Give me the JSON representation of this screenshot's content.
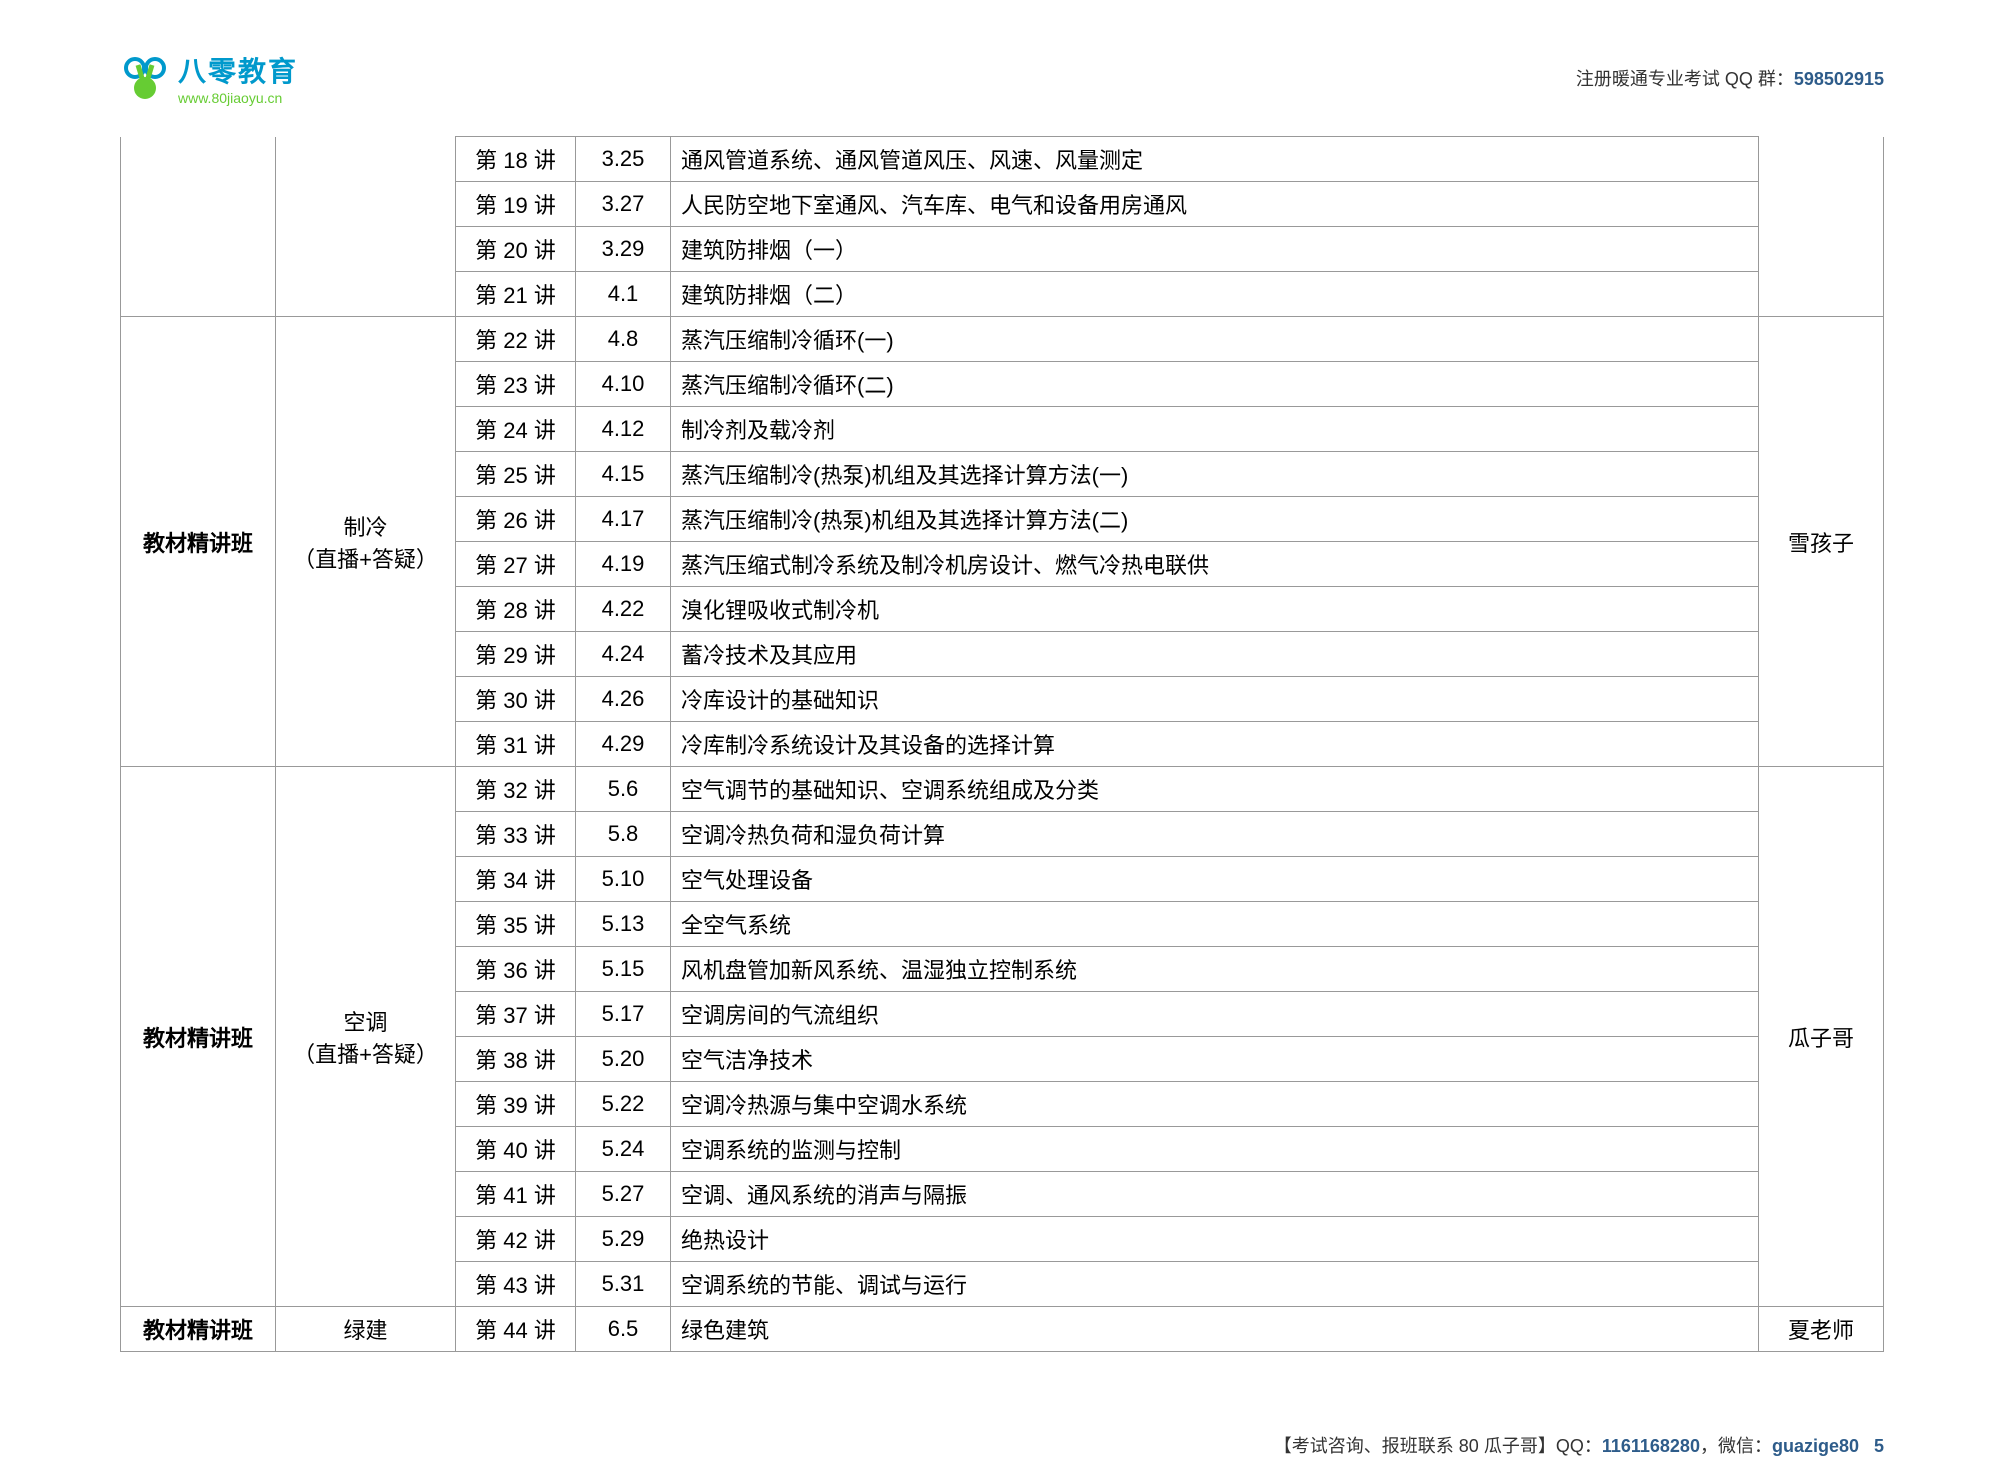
{
  "logo": {
    "title": "八零教育",
    "url": "www.80jiaoyu.cn"
  },
  "header": {
    "text_prefix": "注册暖通专业考试 QQ 群：",
    "qq_group": "598502915"
  },
  "table": {
    "sections": [
      {
        "col1": "",
        "col2": "",
        "col6": "",
        "continuation": true,
        "rows": [
          {
            "lesson": "第 18 讲",
            "date": "3.25",
            "topic": "通风管道系统、通风管道风压、风速、风量测定"
          },
          {
            "lesson": "第 19 讲",
            "date": "3.27",
            "topic": "人民防空地下室通风、汽车库、电气和设备用房通风"
          },
          {
            "lesson": "第 20 讲",
            "date": "3.29",
            "topic": "建筑防排烟（一）"
          },
          {
            "lesson": "第 21 讲",
            "date": "4.1",
            "topic": "建筑防排烟（二）"
          }
        ]
      },
      {
        "col1": "教材精讲班",
        "col2_line1": "制冷",
        "col2_line2": "（直播+答疑）",
        "col6": "雪孩子",
        "rows": [
          {
            "lesson": "第 22 讲",
            "date": "4.8",
            "topic": "蒸汽压缩制冷循环(一)"
          },
          {
            "lesson": "第 23 讲",
            "date": "4.10",
            "topic": "蒸汽压缩制冷循环(二)"
          },
          {
            "lesson": "第 24 讲",
            "date": "4.12",
            "topic": "制冷剂及载冷剂"
          },
          {
            "lesson": "第 25 讲",
            "date": "4.15",
            "topic": "蒸汽压缩制冷(热泵)机组及其选择计算方法(一)"
          },
          {
            "lesson": "第 26 讲",
            "date": "4.17",
            "topic": "蒸汽压缩制冷(热泵)机组及其选择计算方法(二)"
          },
          {
            "lesson": "第 27 讲",
            "date": "4.19",
            "topic": "蒸汽压缩式制冷系统及制冷机房设计、燃气冷热电联供"
          },
          {
            "lesson": "第 28 讲",
            "date": "4.22",
            "topic": "溴化锂吸收式制冷机"
          },
          {
            "lesson": "第 29 讲",
            "date": "4.24",
            "topic": "蓄冷技术及其应用"
          },
          {
            "lesson": "第 30 讲",
            "date": "4.26",
            "topic": "冷库设计的基础知识"
          },
          {
            "lesson": "第 31 讲",
            "date": "4.29",
            "topic": "冷库制冷系统设计及其设备的选择计算"
          }
        ]
      },
      {
        "col1": "教材精讲班",
        "col2_line1": "空调",
        "col2_line2": "（直播+答疑）",
        "col6": "瓜子哥",
        "rows": [
          {
            "lesson": "第 32 讲",
            "date": "5.6",
            "topic": "空气调节的基础知识、空调系统组成及分类"
          },
          {
            "lesson": "第 33 讲",
            "date": "5.8",
            "topic": "空调冷热负荷和湿负荷计算"
          },
          {
            "lesson": "第 34 讲",
            "date": "5.10",
            "topic": "空气处理设备"
          },
          {
            "lesson": "第 35 讲",
            "date": "5.13",
            "topic": "全空气系统"
          },
          {
            "lesson": "第 36 讲",
            "date": "5.15",
            "topic": "风机盘管加新风系统、温湿独立控制系统"
          },
          {
            "lesson": "第 37 讲",
            "date": "5.17",
            "topic": "空调房间的气流组织"
          },
          {
            "lesson": "第 38 讲",
            "date": "5.20",
            "topic": "空气洁净技术"
          },
          {
            "lesson": "第 39 讲",
            "date": "5.22",
            "topic": "空调冷热源与集中空调水系统"
          },
          {
            "lesson": "第 40 讲",
            "date": "5.24",
            "topic": "空调系统的监测与控制"
          },
          {
            "lesson": "第 41 讲",
            "date": "5.27",
            "topic": "空调、通风系统的消声与隔振"
          },
          {
            "lesson": "第 42 讲",
            "date": "5.29",
            "topic": "绝热设计"
          },
          {
            "lesson": "第 43 讲",
            "date": "5.31",
            "topic": "空调系统的节能、调试与运行"
          }
        ]
      },
      {
        "col1": "教材精讲班",
        "col2_line1": "绿建",
        "col2_line2": "",
        "col6": "夏老师",
        "rows": [
          {
            "lesson": "第 44 讲",
            "date": "6.5",
            "topic": "绿色建筑"
          }
        ]
      }
    ]
  },
  "footer": {
    "text_prefix": "【考试咨询、报班联系 80 瓜子哥】QQ：",
    "qq": "1161168280",
    "text_mid": "，微信：",
    "wechat": "guazige80",
    "page": "5"
  }
}
